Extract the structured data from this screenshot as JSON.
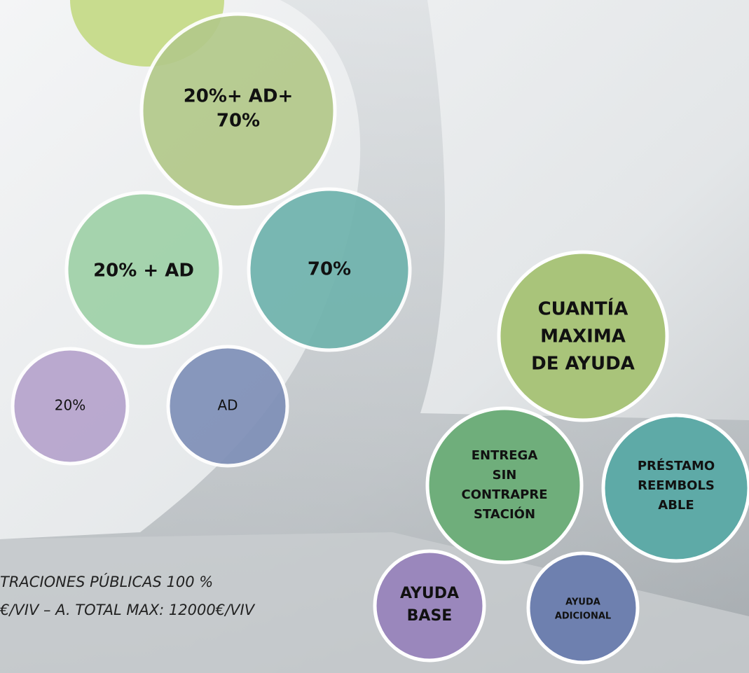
{
  "bubbles": [
    {
      "lines": [
        "20%+ AD+",
        "70%"
      ]
    },
    {
      "lines": [
        "20% + AD"
      ]
    },
    {
      "lines": [
        "70%"
      ]
    },
    {
      "lines": [
        "20%"
      ]
    },
    {
      "lines": [
        "AD"
      ]
    },
    {
      "lines": [
        "CUANTÍA",
        "MAXIMA",
        "DE AYUDA"
      ]
    },
    {
      "lines": [
        "ENTREGA",
        "SIN",
        "CONTRAPRE",
        "STACIÓN"
      ]
    },
    {
      "lines": [
        "PRÉSTAMO",
        "REEMBOLS",
        "ABLE"
      ]
    },
    {
      "lines": [
        "AYUDA",
        "BASE"
      ]
    },
    {
      "lines": [
        "AYUDA",
        "ADICIONAL"
      ]
    }
  ],
  "footer": {
    "lines": [
      "TRACIONES PÚBLICAS 100 %",
      "€/VIV – A. TOTAL MAX: 12000€/VIV"
    ]
  }
}
